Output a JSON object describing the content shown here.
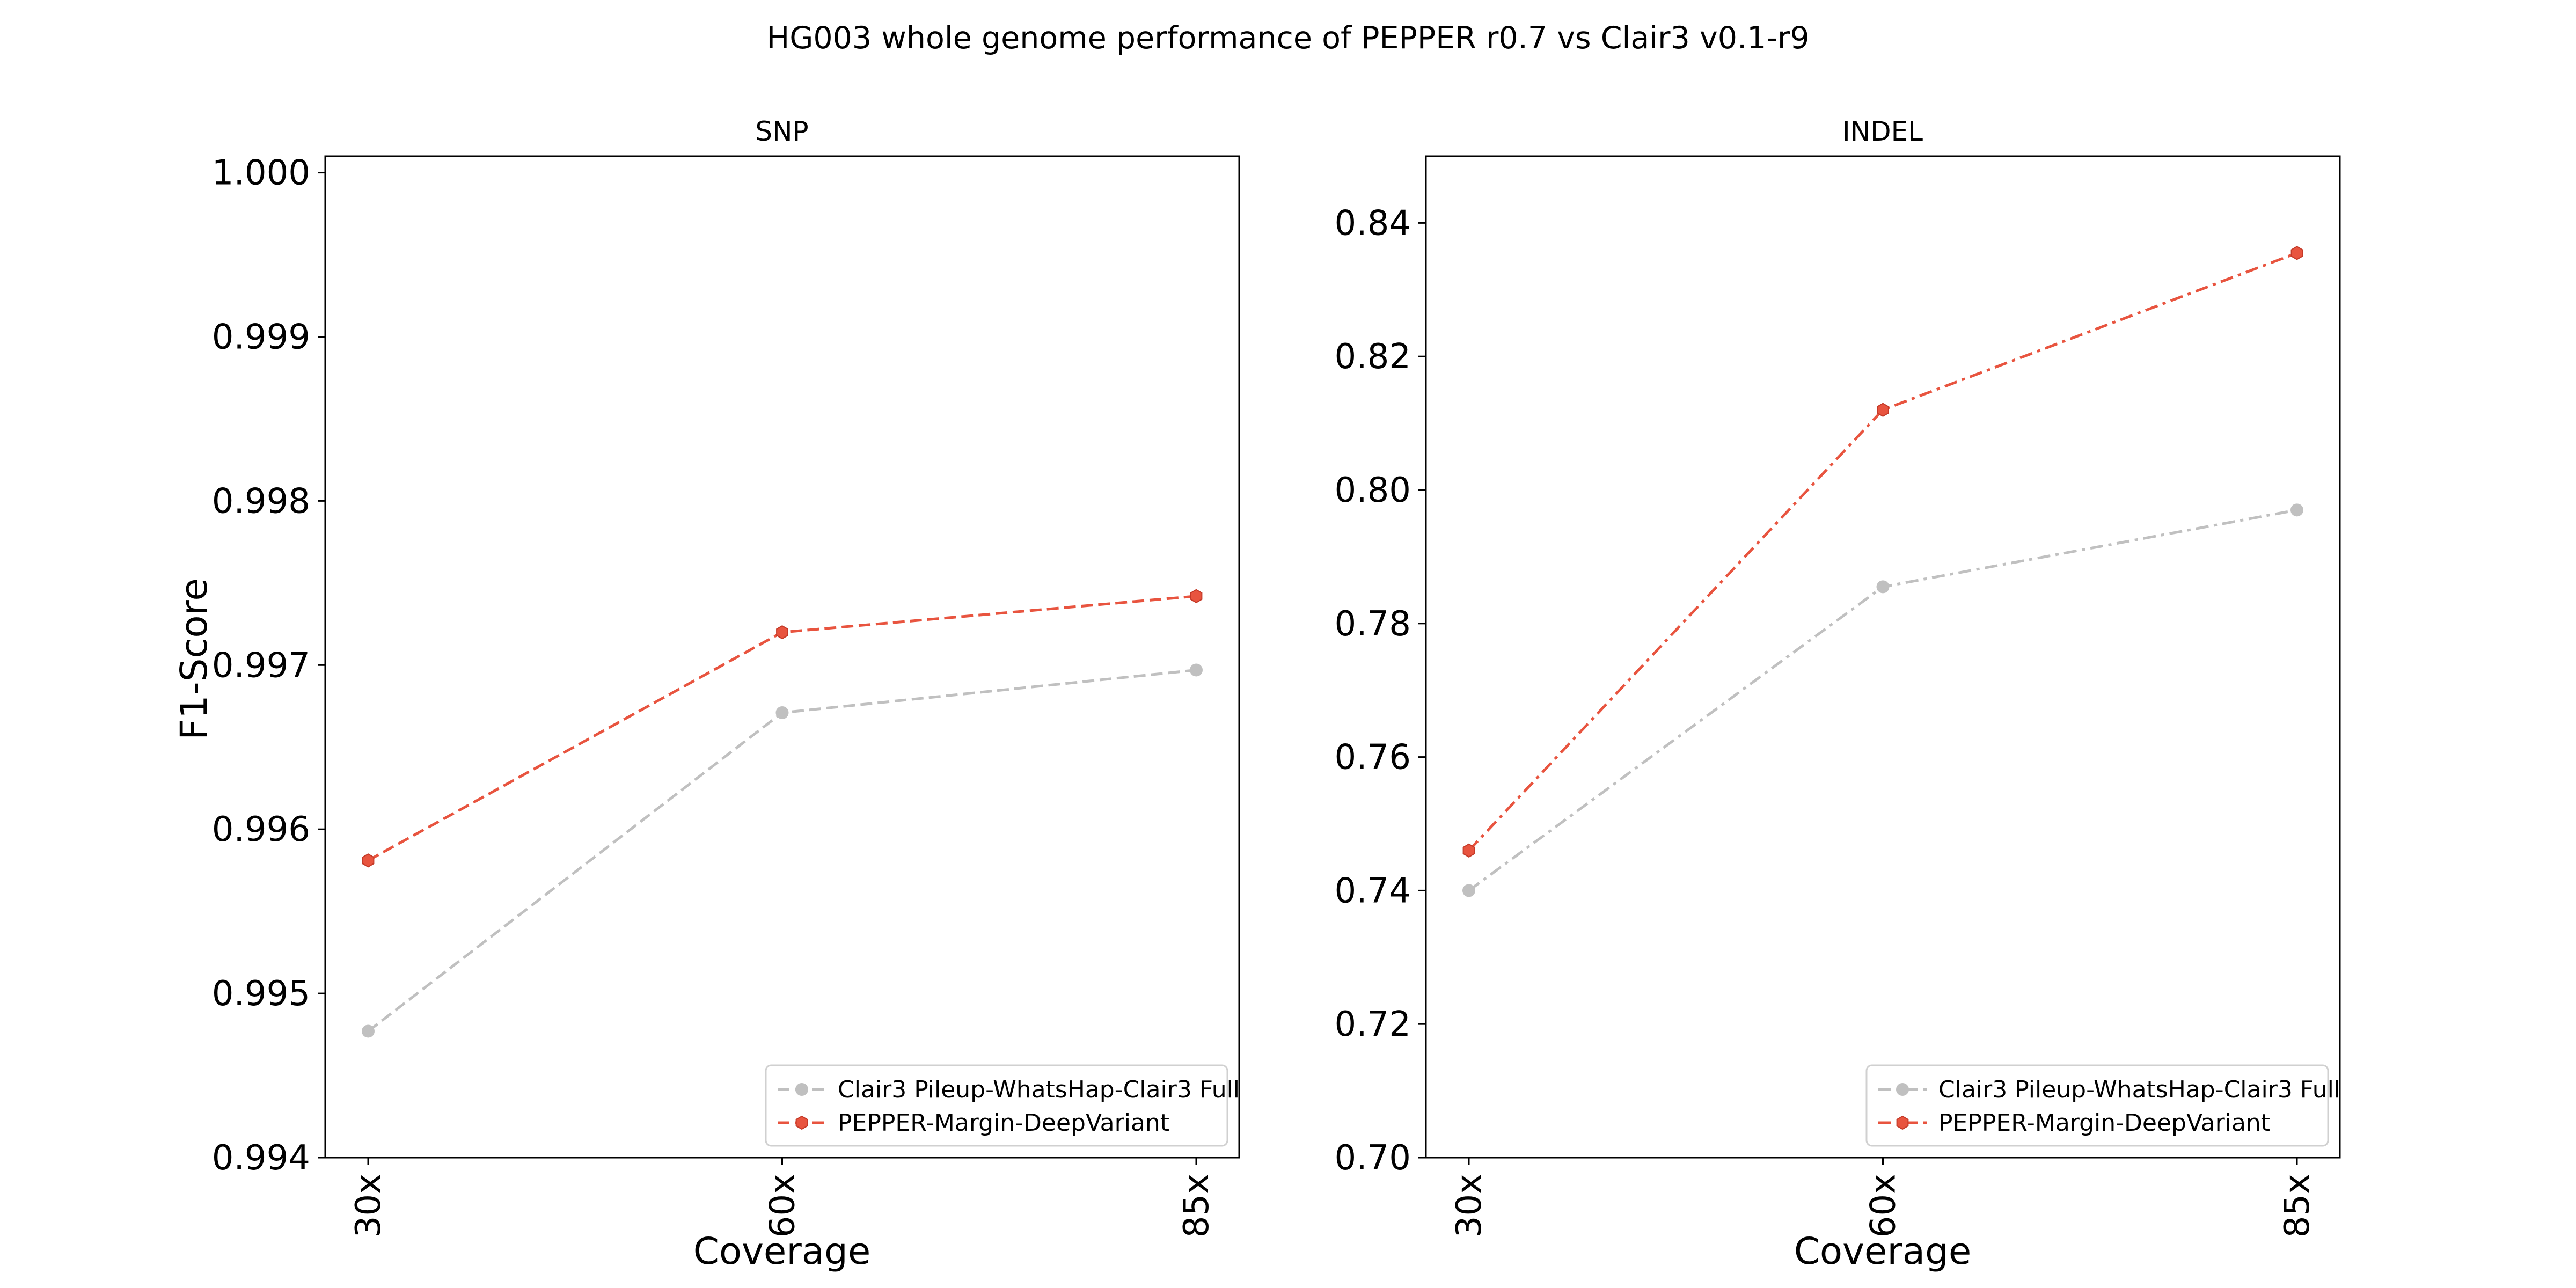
{
  "figure": {
    "title": "HG003 whole genome performance of PEPPER r0.7 vs Clair3 v0.1-r9"
  },
  "chart_data": [
    {
      "type": "line",
      "title": "SNP",
      "xlabel": "Coverage",
      "ylabel": "F1-Score",
      "categories": [
        "30x",
        "60x",
        "85x"
      ],
      "ylim": [
        0.994,
        1.0001
      ],
      "yticks": [
        0.994,
        0.995,
        0.996,
        0.997,
        0.998,
        0.999,
        1.0
      ],
      "ytick_labels": [
        "0.994",
        "0.995",
        "0.996",
        "0.997",
        "0.998",
        "0.999",
        "1.000"
      ],
      "grid": false,
      "legend_position": "lower-right",
      "series": [
        {
          "name": "Clair3 Pileup-WhatsHap-Clair3 Full",
          "color": "#c0c0c0",
          "linestyle": "dashed",
          "marker": "circle",
          "values": [
            0.99477,
            0.99671,
            0.99697
          ]
        },
        {
          "name": "PEPPER-Margin-DeepVariant",
          "color": "#e8543f",
          "linestyle": "dashed",
          "marker": "hexagon",
          "values": [
            0.99581,
            0.9972,
            0.99742
          ]
        }
      ]
    },
    {
      "type": "line",
      "title": "INDEL",
      "xlabel": "Coverage",
      "ylabel": "",
      "categories": [
        "30x",
        "60x",
        "85x"
      ],
      "ylim": [
        0.7,
        0.85
      ],
      "yticks": [
        0.7,
        0.72,
        0.74,
        0.76,
        0.78,
        0.8,
        0.82,
        0.84
      ],
      "ytick_labels": [
        "0.70",
        "0.72",
        "0.74",
        "0.76",
        "0.78",
        "0.80",
        "0.82",
        "0.84"
      ],
      "grid": false,
      "legend_position": "lower-right",
      "series": [
        {
          "name": "Clair3 Pileup-WhatsHap-Clair3 Full",
          "color": "#c0c0c0",
          "linestyle": "dashdot",
          "marker": "circle",
          "values": [
            0.74,
            0.7855,
            0.797
          ]
        },
        {
          "name": "PEPPER-Margin-DeepVariant",
          "color": "#e8543f",
          "linestyle": "dashdot",
          "marker": "hexagon",
          "values": [
            0.746,
            0.812,
            0.8355
          ]
        }
      ]
    }
  ]
}
